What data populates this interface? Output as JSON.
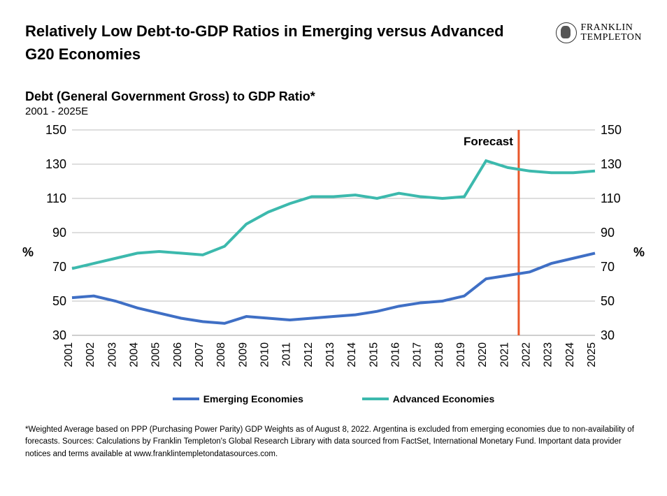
{
  "header": {
    "title": "Relatively Low Debt-to-GDP Ratios in Emerging versus Advanced G20 Economies",
    "logo_line1": "FRANKLIN",
    "logo_line2": "TEMPLETON"
  },
  "chart": {
    "type": "line",
    "subtitle": "Debt (General Government Gross) to GDP Ratio*",
    "range_text": "2001 - 2025E",
    "y_axis_label": "%",
    "ylim": [
      30,
      150
    ],
    "yticks": [
      30,
      50,
      70,
      90,
      110,
      130,
      150
    ],
    "years": [
      2001,
      2002,
      2003,
      2004,
      2005,
      2006,
      2007,
      2008,
      2009,
      2010,
      2011,
      2012,
      2013,
      2014,
      2015,
      2016,
      2017,
      2018,
      2019,
      2020,
      2021,
      2022,
      2023,
      2024,
      2025
    ],
    "forecast_start_year": 2022,
    "forecast_label": "Forecast",
    "forecast_line_color": "#e8572a",
    "grid_color": "#bdbdbd",
    "background_color": "#ffffff",
    "series": [
      {
        "name": "Emerging Economies",
        "color": "#3f6fc5",
        "values": [
          52,
          53,
          50,
          46,
          43,
          40,
          38,
          37,
          41,
          40,
          39,
          40,
          41,
          42,
          44,
          47,
          49,
          50,
          53,
          63,
          65,
          67,
          72,
          75,
          78
        ]
      },
      {
        "name": "Advanced Economies",
        "color": "#3cb9ad",
        "values": [
          69,
          72,
          75,
          78,
          79,
          78,
          77,
          82,
          95,
          102,
          107,
          111,
          111,
          112,
          110,
          113,
          111,
          110,
          111,
          132,
          128,
          126,
          125,
          125,
          126
        ]
      }
    ],
    "legend": [
      {
        "label": "Emerging Economies",
        "color": "#3f6fc5"
      },
      {
        "label": "Advanced Economies",
        "color": "#3cb9ad"
      }
    ],
    "tick_fontsize": 18,
    "xtick_fontsize": 16,
    "line_width": 4
  },
  "footnote": "*Weighted Average based on PPP (Purchasing Power Parity) GDP Weights as of August 8, 2022. Argentina is excluded from emerging economies due to non-availability of forecasts. Sources: Calculations by Franklin Templeton's Global Research Library with data sourced from FactSet, International Monetary Fund. Important data provider notices and terms available at www.franklintempletondatasources.com."
}
